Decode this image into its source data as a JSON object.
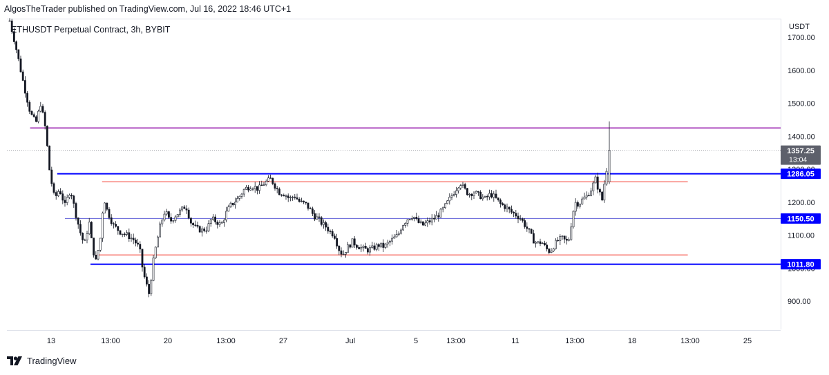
{
  "header": {
    "text": "AlgosTheTrader published on TradingView.com, Jul 16, 2022 18:46 UTC+1"
  },
  "symbol": {
    "title": "ETHUSDT Perpetual Contract, 3h, BYBIT"
  },
  "price_scale": {
    "currency": "USDT"
  },
  "footer": {
    "brand": "TradingView",
    "logo_icon": "tradingview-logo-icon"
  },
  "colors": {
    "candle": "#131722",
    "resistance": "#9c27b0",
    "key_level": "#0000ff",
    "range_line": "#f44336",
    "mid_line": "#5b5bd6",
    "badge_bg": "#0000ff",
    "price_badge_bg": "#5d606b"
  },
  "chart_data": {
    "type": "candlestick",
    "title": "ETHUSDT Perpetual Contract, 3h, BYBIT",
    "x_tick_labels": [
      "13",
      "13:00",
      "20",
      "13:00",
      "27",
      "Jul",
      "5",
      "13:00",
      "11",
      "13:00",
      "18",
      "13:00",
      "25"
    ],
    "y_tick_labels": [
      "900.00",
      "1000.00",
      "1100.00",
      "1200.00",
      "1300.00",
      "1400.00",
      "1500.00",
      "1600.00",
      "1700.00"
    ],
    "ylim": [
      860,
      1760
    ],
    "current_price": {
      "value": 1357.25,
      "label": "1357.25",
      "countdown": "13:04"
    },
    "level_labels": [
      {
        "value": 1286.05,
        "label": "1286.05"
      },
      {
        "value": 1150.5,
        "label": "1150.50"
      },
      {
        "value": 1011.8,
        "label": "1011.80"
      }
    ],
    "horizontal_lines": [
      {
        "name": "resistance",
        "price": 1425,
        "start": 0.03,
        "end": 1.0,
        "color_key": "resistance"
      },
      {
        "name": "upper-key-level",
        "price": 1286.05,
        "start": 0.065,
        "end": 1.0,
        "color_key": "key_level"
      },
      {
        "name": "range-top",
        "price": 1262,
        "start": 0.123,
        "end": 0.88,
        "color_key": "range_line"
      },
      {
        "name": "range-mid",
        "price": 1150.5,
        "start": 0.075,
        "end": 1.0,
        "color_key": "mid_line"
      },
      {
        "name": "range-bottom",
        "price": 1040,
        "start": 0.116,
        "end": 0.88,
        "color_key": "range_line"
      },
      {
        "name": "lower-key-level",
        "price": 1011.8,
        "start": 0.108,
        "end": 1.0,
        "color_key": "key_level"
      }
    ],
    "candle_path": [
      [
        0,
        1750
      ],
      [
        8,
        1680
      ],
      [
        20,
        1560
      ],
      [
        30,
        1470
      ],
      [
        38,
        1440
      ],
      [
        45,
        1500
      ],
      [
        52,
        1420
      ],
      [
        58,
        1290
      ],
      [
        65,
        1210
      ],
      [
        72,
        1240
      ],
      [
        80,
        1190
      ],
      [
        88,
        1240
      ],
      [
        95,
        1170
      ],
      [
        102,
        1110
      ],
      [
        108,
        1070
      ],
      [
        115,
        1140
      ],
      [
        120,
        1060
      ],
      [
        125,
        1020
      ],
      [
        132,
        1100
      ],
      [
        136,
        1220
      ],
      [
        140,
        1180
      ],
      [
        150,
        1130
      ],
      [
        160,
        1110
      ],
      [
        170,
        1100
      ],
      [
        180,
        1085
      ],
      [
        188,
        1060
      ],
      [
        193,
        990
      ],
      [
        198,
        950
      ],
      [
        202,
        920
      ],
      [
        207,
        1010
      ],
      [
        212,
        1070
      ],
      [
        218,
        1130
      ],
      [
        225,
        1175
      ],
      [
        232,
        1140
      ],
      [
        240,
        1160
      ],
      [
        248,
        1175
      ],
      [
        255,
        1190
      ],
      [
        262,
        1140
      ],
      [
        270,
        1120
      ],
      [
        278,
        1115
      ],
      [
        286,
        1120
      ],
      [
        292,
        1150
      ],
      [
        300,
        1140
      ],
      [
        306,
        1130
      ],
      [
        314,
        1170
      ],
      [
        320,
        1190
      ],
      [
        330,
        1210
      ],
      [
        340,
        1240
      ],
      [
        350,
        1250
      ],
      [
        360,
        1240
      ],
      [
        370,
        1260
      ],
      [
        378,
        1270
      ],
      [
        384,
        1250
      ],
      [
        390,
        1230
      ],
      [
        398,
        1225
      ],
      [
        405,
        1210
      ],
      [
        412,
        1220
      ],
      [
        420,
        1200
      ],
      [
        428,
        1195
      ],
      [
        434,
        1180
      ],
      [
        440,
        1160
      ],
      [
        446,
        1150
      ],
      [
        452,
        1135
      ],
      [
        458,
        1125
      ],
      [
        464,
        1110
      ],
      [
        470,
        1100
      ],
      [
        476,
        1060
      ],
      [
        482,
        1040
      ],
      [
        488,
        1060
      ],
      [
        496,
        1080
      ],
      [
        502,
        1070
      ],
      [
        510,
        1060
      ],
      [
        518,
        1055
      ],
      [
        526,
        1060
      ],
      [
        534,
        1070
      ],
      [
        542,
        1065
      ],
      [
        550,
        1080
      ],
      [
        556,
        1090
      ],
      [
        562,
        1100
      ],
      [
        568,
        1130
      ],
      [
        576,
        1150
      ],
      [
        584,
        1160
      ],
      [
        590,
        1140
      ],
      [
        598,
        1130
      ],
      [
        606,
        1140
      ],
      [
        614,
        1150
      ],
      [
        620,
        1160
      ],
      [
        628,
        1180
      ],
      [
        634,
        1200
      ],
      [
        640,
        1220
      ],
      [
        646,
        1240
      ],
      [
        652,
        1260
      ],
      [
        658,
        1240
      ],
      [
        664,
        1225
      ],
      [
        672,
        1230
      ],
      [
        680,
        1220
      ],
      [
        688,
        1210
      ],
      [
        696,
        1225
      ],
      [
        702,
        1215
      ],
      [
        710,
        1195
      ],
      [
        718,
        1185
      ],
      [
        726,
        1170
      ],
      [
        734,
        1160
      ],
      [
        740,
        1150
      ],
      [
        746,
        1130
      ],
      [
        752,
        1110
      ],
      [
        758,
        1085
      ],
      [
        764,
        1075
      ],
      [
        770,
        1080
      ],
      [
        776,
        1060
      ],
      [
        782,
        1050
      ],
      [
        788,
        1070
      ],
      [
        794,
        1085
      ],
      [
        800,
        1090
      ],
      [
        806,
        1080
      ],
      [
        810,
        1090
      ],
      [
        814,
        1150
      ],
      [
        818,
        1200
      ],
      [
        824,
        1195
      ],
      [
        830,
        1210
      ],
      [
        836,
        1220
      ],
      [
        842,
        1240
      ],
      [
        848,
        1270
      ],
      [
        852,
        1240
      ],
      [
        856,
        1215
      ],
      [
        858,
        1205
      ],
      [
        861,
        1260
      ],
      [
        864,
        1300
      ],
      [
        866,
        1357
      ]
    ]
  }
}
